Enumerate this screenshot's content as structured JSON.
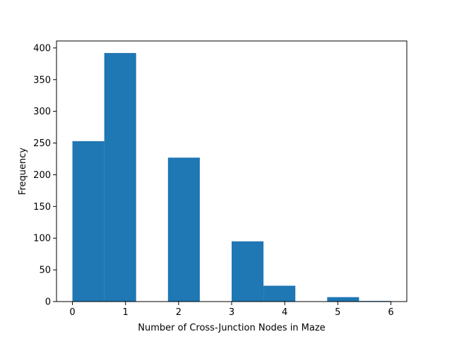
{
  "chart_data": {
    "type": "bar",
    "title": "",
    "xlabel": "Number of Cross-Junction Nodes in Maze",
    "ylabel": "Frequency",
    "xlim": [
      -0.3,
      6.3
    ],
    "ylim": [
      0,
      411
    ],
    "bar_color": "#1f77b4",
    "bins": [
      {
        "x0": 0.0,
        "x1": 0.6,
        "value": 253
      },
      {
        "x0": 0.6,
        "x1": 1.2,
        "value": 392
      },
      {
        "x0": 1.2,
        "x1": 1.8,
        "value": 0
      },
      {
        "x0": 1.8,
        "x1": 2.4,
        "value": 227
      },
      {
        "x0": 2.4,
        "x1": 3.0,
        "value": 0
      },
      {
        "x0": 3.0,
        "x1": 3.6,
        "value": 95
      },
      {
        "x0": 3.6,
        "x1": 4.2,
        "value": 25
      },
      {
        "x0": 4.2,
        "x1": 4.8,
        "value": 0
      },
      {
        "x0": 4.8,
        "x1": 5.4,
        "value": 7
      },
      {
        "x0": 5.4,
        "x1": 6.0,
        "value": 1
      }
    ],
    "xticks": [
      "0",
      "1",
      "2",
      "3",
      "4",
      "5",
      "6"
    ],
    "yticks": [
      "0",
      "50",
      "100",
      "150",
      "200",
      "250",
      "300",
      "350",
      "400"
    ],
    "grid": false,
    "legend": "none"
  }
}
